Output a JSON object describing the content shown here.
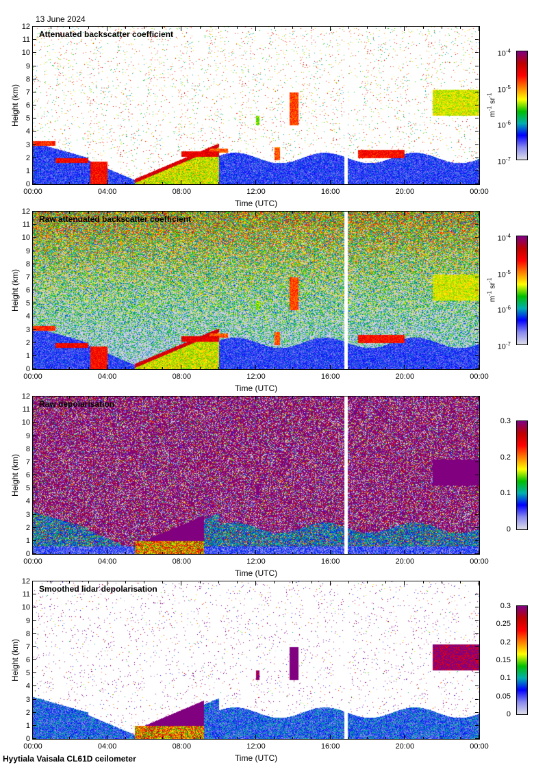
{
  "header": {
    "date": "13 June 2024"
  },
  "footer": {
    "caption": "Hyytiala Vaisala CL61D ceilometer"
  },
  "colors": {
    "colormap": [
      "#dcdce8",
      "#8888f0",
      "#0000ff",
      "#00b0b0",
      "#00c000",
      "#ffff00",
      "#ff8000",
      "#ff0000",
      "#c00000",
      "#800080"
    ],
    "gap": "#ffffff"
  },
  "chart_data": [
    {
      "type": "heatmap",
      "mode": "att",
      "title": "Attenuated backscatter coefficient",
      "xlabel": "Time (UTC)",
      "ylabel": "Height (km)",
      "xlim": [
        0,
        24
      ],
      "ylim": [
        0,
        12
      ],
      "xticks": [
        "00:00",
        "04:00",
        "08:00",
        "12:00",
        "16:00",
        "20:00",
        "00:00"
      ],
      "yticks": [
        "0",
        "1",
        "2",
        "3",
        "4",
        "5",
        "6",
        "7",
        "8",
        "9",
        "10",
        "11",
        "12"
      ],
      "data_gap_hours": [
        16.75,
        16.95
      ],
      "colorbar": {
        "scale": "log",
        "range": [
          1e-07,
          0.0001
        ],
        "ticks": [
          {
            "base": "10",
            "exp": "-4"
          },
          {
            "base": "10",
            "exp": "-5"
          },
          {
            "base": "10",
            "exp": "-6"
          },
          {
            "base": "10",
            "exp": "-7"
          }
        ],
        "unit": [
          {
            "base": "m",
            "exp": "-1"
          },
          {
            "base": " sr",
            "exp": "-1"
          }
        ]
      }
    },
    {
      "type": "heatmap",
      "mode": "raw",
      "title": "Raw attenuated backscatter coefficient",
      "xlabel": "Time (UTC)",
      "ylabel": "Height (km)",
      "xlim": [
        0,
        24
      ],
      "ylim": [
        0,
        12
      ],
      "xticks": [
        "00:00",
        "04:00",
        "08:00",
        "12:00",
        "16:00",
        "20:00",
        "00:00"
      ],
      "yticks": [
        "0",
        "1",
        "2",
        "3",
        "4",
        "5",
        "6",
        "7",
        "8",
        "9",
        "10",
        "11",
        "12"
      ],
      "data_gap_hours": [
        16.75,
        16.95
      ],
      "colorbar": {
        "scale": "log",
        "range": [
          1e-07,
          0.0001
        ],
        "ticks": [
          {
            "base": "10",
            "exp": "-4"
          },
          {
            "base": "10",
            "exp": "-5"
          },
          {
            "base": "10",
            "exp": "-6"
          },
          {
            "base": "10",
            "exp": "-7"
          }
        ],
        "unit": [
          {
            "base": "m",
            "exp": "-1"
          },
          {
            "base": " sr",
            "exp": "-1"
          }
        ]
      }
    },
    {
      "type": "heatmap",
      "mode": "rawdep",
      "title": "Raw depolarisation",
      "xlabel": "Time (UTC)",
      "ylabel": "Height (km)",
      "xlim": [
        0,
        24
      ],
      "ylim": [
        0,
        12
      ],
      "xticks": [
        "00:00",
        "04:00",
        "08:00",
        "12:00",
        "16:00",
        "20:00",
        "00:00"
      ],
      "yticks": [
        "0",
        "1",
        "2",
        "3",
        "4",
        "5",
        "6",
        "7",
        "8",
        "9",
        "10",
        "11",
        "12"
      ],
      "data_gap_hours": [
        16.75,
        16.95
      ],
      "colorbar": {
        "scale": "linear",
        "range": [
          0,
          0.3
        ],
        "ticks": [
          {
            "base": "0.3"
          },
          {
            "base": "0.2"
          },
          {
            "base": "0.1"
          },
          {
            "base": "0"
          }
        ],
        "tick_values": [
          0.3,
          0.2,
          0.1,
          0
        ]
      }
    },
    {
      "type": "heatmap",
      "mode": "dep",
      "title": "Smoothed lidar depolarisation",
      "xlabel": "Time (UTC)",
      "ylabel": "Height (km)",
      "xlim": [
        0,
        24
      ],
      "ylim": [
        0,
        12
      ],
      "xticks": [
        "00:00",
        "04:00",
        "08:00",
        "12:00",
        "16:00",
        "20:00",
        "00:00"
      ],
      "yticks": [
        "0",
        "1",
        "2",
        "3",
        "4",
        "5",
        "6",
        "7",
        "8",
        "9",
        "10",
        "11",
        "12"
      ],
      "data_gap_hours": [
        16.75,
        16.95
      ],
      "colorbar": {
        "scale": "linear",
        "range": [
          0,
          0.3
        ],
        "ticks": [
          {
            "base": "0.3"
          },
          {
            "base": "0.25"
          },
          {
            "base": "0.2"
          },
          {
            "base": "0.15"
          },
          {
            "base": "0.1"
          },
          {
            "base": "0.05"
          },
          {
            "base": "0"
          }
        ],
        "tick_values": [
          0.3,
          0.25,
          0.2,
          0.15,
          0.1,
          0.05,
          0
        ]
      }
    }
  ]
}
